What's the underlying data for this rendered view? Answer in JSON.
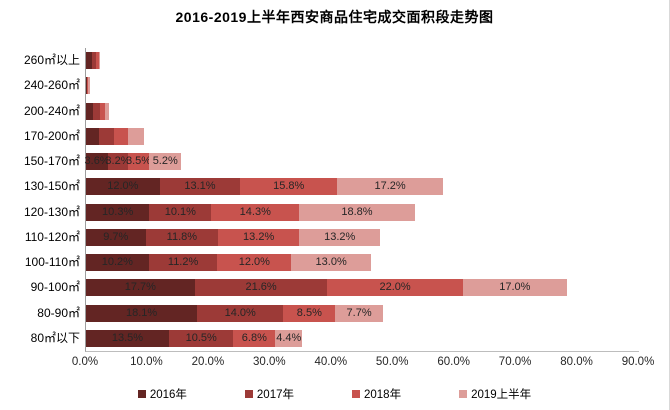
{
  "title": "2016-2019上半年西安商品住宅成交面积段走势图",
  "axis": {
    "x_ticks": [
      "0.0%",
      "10.0%",
      "20.0%",
      "30.0%",
      "40.0%",
      "50.0%",
      "60.0%",
      "70.0%",
      "80.0%",
      "90.0%"
    ]
  },
  "colors": {
    "y2016": "#632523",
    "y2017": "#9c3a37",
    "y2018": "#c8534e",
    "y2019h1": "#dd9d99",
    "axis_line": "#9e9e9e"
  },
  "chart_data": {
    "type": "bar",
    "orientation": "horizontal",
    "stacked": true,
    "title": "2016-2019上半年西安商品住宅成交面积段走势图",
    "categories": [
      "260㎡以上",
      "240-260㎡",
      "200-240㎡",
      "170-200㎡",
      "150-170㎡",
      "130-150㎡",
      "120-130㎡",
      "110-120㎡",
      "100-110㎡",
      "90-100㎡",
      "80-90㎡",
      "80㎡以下"
    ],
    "series": [
      {
        "key": "2016",
        "name": "2016年",
        "color": "#632523",
        "values": [
          1.0,
          0.1,
          1.2,
          2.1,
          3.6,
          12.0,
          10.3,
          9.7,
          10.2,
          17.7,
          18.1,
          13.5
        ]
      },
      {
        "key": "2017",
        "name": "2017年",
        "color": "#9c3a37",
        "values": [
          0.6,
          0.1,
          1.0,
          2.4,
          3.2,
          13.1,
          10.1,
          11.8,
          11.2,
          21.6,
          14.0,
          10.5
        ]
      },
      {
        "key": "2018",
        "name": "2018年",
        "color": "#c8534e",
        "values": [
          0.5,
          0.1,
          0.9,
          2.3,
          3.5,
          15.8,
          14.3,
          13.2,
          12.0,
          22.0,
          8.5,
          6.8
        ]
      },
      {
        "key": "2019h1",
        "name": "2019上半年",
        "color": "#dd9d99",
        "values": [
          0.2,
          0.3,
          0.7,
          2.6,
          5.2,
          17.2,
          18.8,
          13.2,
          13.0,
          17.0,
          7.7,
          4.4
        ]
      }
    ],
    "value_label_format": "one_decimal_percent",
    "value_labels_from_category_index": 4,
    "xlim": [
      0,
      90
    ],
    "x_tick_labels": [
      "0.0%",
      "10.0%",
      "20.0%",
      "30.0%",
      "40.0%",
      "50.0%",
      "60.0%",
      "70.0%",
      "80.0%",
      "90.0%"
    ],
    "grid": false,
    "legend_position": "bottom",
    "legend": [
      "2016年",
      "2017年",
      "2018年",
      "2019上半年"
    ]
  }
}
